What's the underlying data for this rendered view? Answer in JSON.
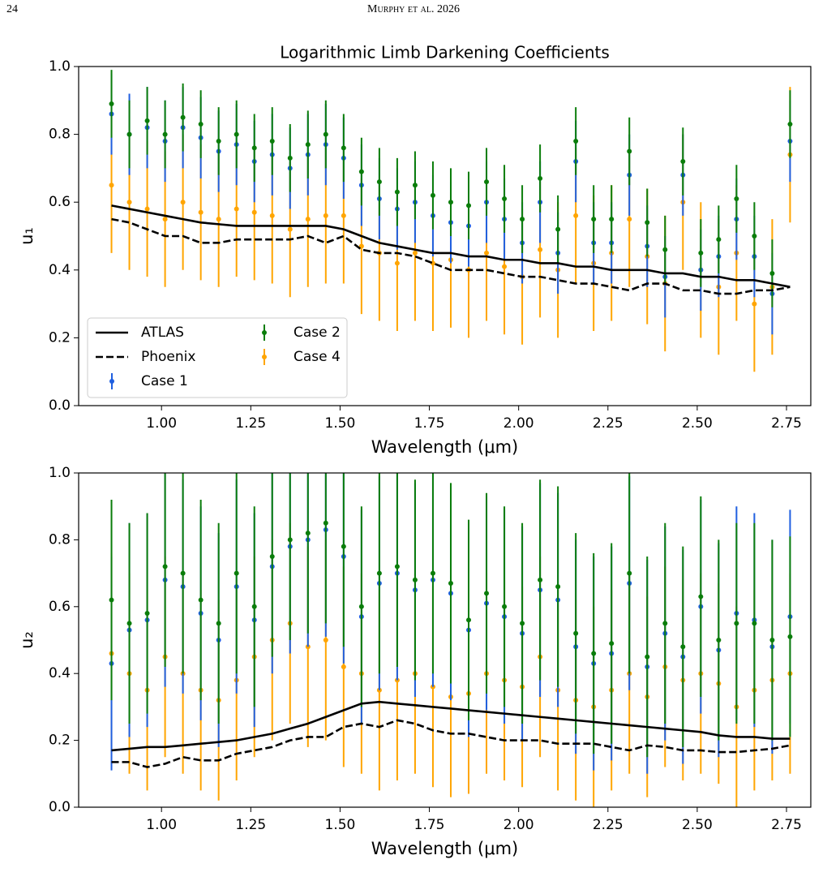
{
  "header": {
    "page": "24",
    "running_head": "Murphy et al. 2026"
  },
  "chart_data": [
    {
      "type": "errorbar",
      "title": "Logarithmic Limb Darkening Coefficients",
      "x_label": "Wavelength (μm)",
      "y_label": "u₁",
      "xlim": [
        0.768,
        2.818
      ],
      "ylim": [
        0,
        1
      ],
      "xticks": [
        {
          "value": 1,
          "label": "1.00"
        },
        1.25,
        {
          "value": 1.5,
          "label": "1.50"
        },
        1.75,
        {
          "value": 2,
          "label": "2.00"
        },
        2.25,
        {
          "value": 2.5,
          "label": "2.50"
        },
        2.75
      ],
      "yticks": [
        {
          "value": 0,
          "label": "0.0"
        },
        0.2,
        0.4,
        0.6,
        0.8,
        {
          "value": 1,
          "label": "1.0"
        }
      ],
      "legend": "lower left",
      "x": [
        0.86,
        0.91,
        0.96,
        1.01,
        1.06,
        1.11,
        1.16,
        1.21,
        1.26,
        1.31,
        1.36,
        1.41,
        1.46,
        1.51,
        1.56,
        1.61,
        1.66,
        1.71,
        1.76,
        1.81,
        1.86,
        1.91,
        1.96,
        2.01,
        2.06,
        2.11,
        2.16,
        2.21,
        2.26,
        2.31,
        2.36,
        2.41,
        2.46,
        2.51,
        2.56,
        2.61,
        2.66,
        2.71,
        2.76
      ],
      "series": [
        {
          "name": "ATLAS",
          "color": "#000000",
          "style": "solid",
          "values": [
            0.59,
            0.58,
            0.57,
            0.56,
            0.55,
            0.54,
            0.535,
            0.53,
            0.53,
            0.53,
            0.53,
            0.53,
            0.53,
            0.52,
            0.5,
            0.48,
            0.47,
            0.46,
            0.45,
            0.45,
            0.44,
            0.44,
            0.43,
            0.43,
            0.42,
            0.42,
            0.41,
            0.41,
            0.4,
            0.4,
            0.4,
            0.39,
            0.39,
            0.38,
            0.38,
            0.37,
            0.37,
            0.36,
            0.35
          ]
        },
        {
          "name": "Phoenix",
          "color": "#000000",
          "style": "dashed",
          "values": [
            0.55,
            0.54,
            0.52,
            0.5,
            0.5,
            0.48,
            0.48,
            0.49,
            0.49,
            0.49,
            0.49,
            0.5,
            0.48,
            0.5,
            0.46,
            0.45,
            0.45,
            0.44,
            0.42,
            0.4,
            0.4,
            0.4,
            0.39,
            0.38,
            0.38,
            0.37,
            0.36,
            0.36,
            0.35,
            0.34,
            0.36,
            0.36,
            0.34,
            0.34,
            0.33,
            0.33,
            0.34,
            0.34,
            0.35
          ]
        },
        {
          "name": "Case 1",
          "color": "#1f5fe0",
          "error": 0.12,
          "values": [
            0.86,
            0.8,
            0.82,
            0.78,
            0.82,
            0.79,
            0.75,
            0.77,
            0.72,
            0.74,
            0.7,
            0.74,
            0.77,
            0.73,
            0.65,
            0.61,
            0.58,
            0.6,
            0.56,
            0.54,
            0.53,
            0.6,
            0.55,
            0.48,
            0.6,
            0.45,
            0.72,
            0.48,
            0.48,
            0.68,
            0.47,
            0.38,
            0.68,
            0.4,
            0.44,
            0.55,
            0.44,
            0.33,
            0.78
          ]
        },
        {
          "name": "Case 2",
          "color": "#0a7d0a",
          "error": 0.1,
          "values": [
            0.89,
            0.8,
            0.84,
            0.8,
            0.85,
            0.83,
            0.78,
            0.8,
            0.76,
            0.78,
            0.73,
            0.77,
            0.8,
            0.76,
            0.69,
            0.66,
            0.63,
            0.65,
            0.62,
            0.6,
            0.59,
            0.66,
            0.61,
            0.55,
            0.67,
            0.52,
            0.78,
            0.55,
            0.55,
            0.75,
            0.54,
            0.46,
            0.72,
            0.45,
            0.49,
            0.61,
            0.5,
            0.39,
            0.83
          ]
        },
        {
          "name": "Case 4",
          "color": "#ffa500",
          "error": 0.2,
          "values": [
            0.65,
            0.6,
            0.58,
            0.55,
            0.6,
            0.57,
            0.55,
            0.58,
            0.57,
            0.56,
            0.52,
            0.55,
            0.56,
            0.56,
            0.47,
            0.45,
            0.42,
            0.45,
            0.42,
            0.43,
            0.4,
            0.45,
            0.41,
            0.38,
            0.46,
            0.4,
            0.56,
            0.42,
            0.45,
            0.55,
            0.44,
            0.36,
            0.6,
            0.4,
            0.35,
            0.45,
            0.3,
            0.35,
            0.74
          ]
        }
      ]
    },
    {
      "type": "errorbar",
      "x_label": "Wavelength (μm)",
      "y_label": "u₂",
      "xlim": [
        0.768,
        2.818
      ],
      "ylim": [
        0,
        1
      ],
      "xticks": [
        {
          "value": 1,
          "label": "1.00"
        },
        1.25,
        {
          "value": 1.5,
          "label": "1.50"
        },
        1.75,
        {
          "value": 2,
          "label": "2.00"
        },
        2.25,
        {
          "value": 2.5,
          "label": "2.50"
        },
        2.75
      ],
      "yticks": [
        {
          "value": 0,
          "label": "0.0"
        },
        0.2,
        0.4,
        0.6,
        0.8,
        {
          "value": 1,
          "label": "1.0"
        }
      ],
      "x": [
        0.86,
        0.91,
        0.96,
        1.01,
        1.06,
        1.11,
        1.16,
        1.21,
        1.26,
        1.31,
        1.36,
        1.41,
        1.46,
        1.51,
        1.56,
        1.61,
        1.66,
        1.71,
        1.76,
        1.81,
        1.86,
        1.91,
        1.96,
        2.01,
        2.06,
        2.11,
        2.16,
        2.21,
        2.26,
        2.31,
        2.36,
        2.41,
        2.46,
        2.51,
        2.56,
        2.61,
        2.66,
        2.71,
        2.76
      ],
      "series": [
        {
          "color": "#000000",
          "style": "solid",
          "values": [
            0.17,
            0.175,
            0.18,
            0.18,
            0.185,
            0.19,
            0.195,
            0.2,
            0.21,
            0.22,
            0.235,
            0.25,
            0.27,
            0.29,
            0.31,
            0.315,
            0.31,
            0.305,
            0.3,
            0.295,
            0.29,
            0.285,
            0.28,
            0.275,
            0.27,
            0.265,
            0.26,
            0.255,
            0.25,
            0.245,
            0.24,
            0.235,
            0.23,
            0.225,
            0.215,
            0.21,
            0.21,
            0.205,
            0.205
          ]
        },
        {
          "color": "#000000",
          "style": "dashed",
          "values": [
            0.135,
            0.135,
            0.12,
            0.13,
            0.15,
            0.14,
            0.14,
            0.16,
            0.17,
            0.18,
            0.2,
            0.21,
            0.21,
            0.24,
            0.25,
            0.24,
            0.26,
            0.25,
            0.23,
            0.22,
            0.22,
            0.21,
            0.2,
            0.2,
            0.2,
            0.19,
            0.19,
            0.19,
            0.18,
            0.17,
            0.185,
            0.18,
            0.17,
            0.17,
            0.165,
            0.165,
            0.17,
            0.175,
            0.185
          ]
        },
        {
          "color": "#1f5fe0",
          "error": 0.32,
          "values": [
            0.43,
            0.53,
            0.56,
            0.68,
            0.66,
            0.58,
            0.5,
            0.66,
            0.56,
            0.72,
            0.78,
            0.8,
            0.83,
            0.75,
            0.57,
            0.67,
            0.7,
            0.65,
            0.68,
            0.64,
            0.53,
            0.61,
            0.57,
            0.52,
            0.65,
            0.62,
            0.48,
            0.43,
            0.46,
            0.67,
            0.42,
            0.52,
            0.45,
            0.6,
            0.47,
            0.58,
            0.56,
            0.48,
            0.57
          ]
        },
        {
          "color": "#0a7d0a",
          "error": 0.3,
          "values": [
            0.62,
            0.55,
            0.58,
            0.72,
            0.7,
            0.62,
            0.55,
            0.7,
            0.6,
            0.75,
            0.8,
            0.82,
            0.85,
            0.78,
            0.6,
            0.7,
            0.72,
            0.68,
            0.7,
            0.67,
            0.56,
            0.64,
            0.6,
            0.55,
            0.68,
            0.66,
            0.52,
            0.46,
            0.49,
            0.7,
            0.45,
            0.55,
            0.48,
            0.63,
            0.5,
            0.55,
            0.55,
            0.5,
            0.51
          ]
        },
        {
          "color": "#ffa500",
          "error": 0.3,
          "values": [
            0.46,
            0.4,
            0.35,
            0.45,
            0.4,
            0.35,
            0.32,
            0.38,
            0.45,
            0.5,
            0.55,
            0.48,
            0.5,
            0.42,
            0.4,
            0.35,
            0.38,
            0.4,
            0.36,
            0.33,
            0.34,
            0.4,
            0.38,
            0.36,
            0.45,
            0.35,
            0.32,
            0.3,
            0.35,
            0.4,
            0.33,
            0.42,
            0.38,
            0.4,
            0.37,
            0.3,
            0.35,
            0.38,
            0.4
          ]
        }
      ]
    }
  ]
}
